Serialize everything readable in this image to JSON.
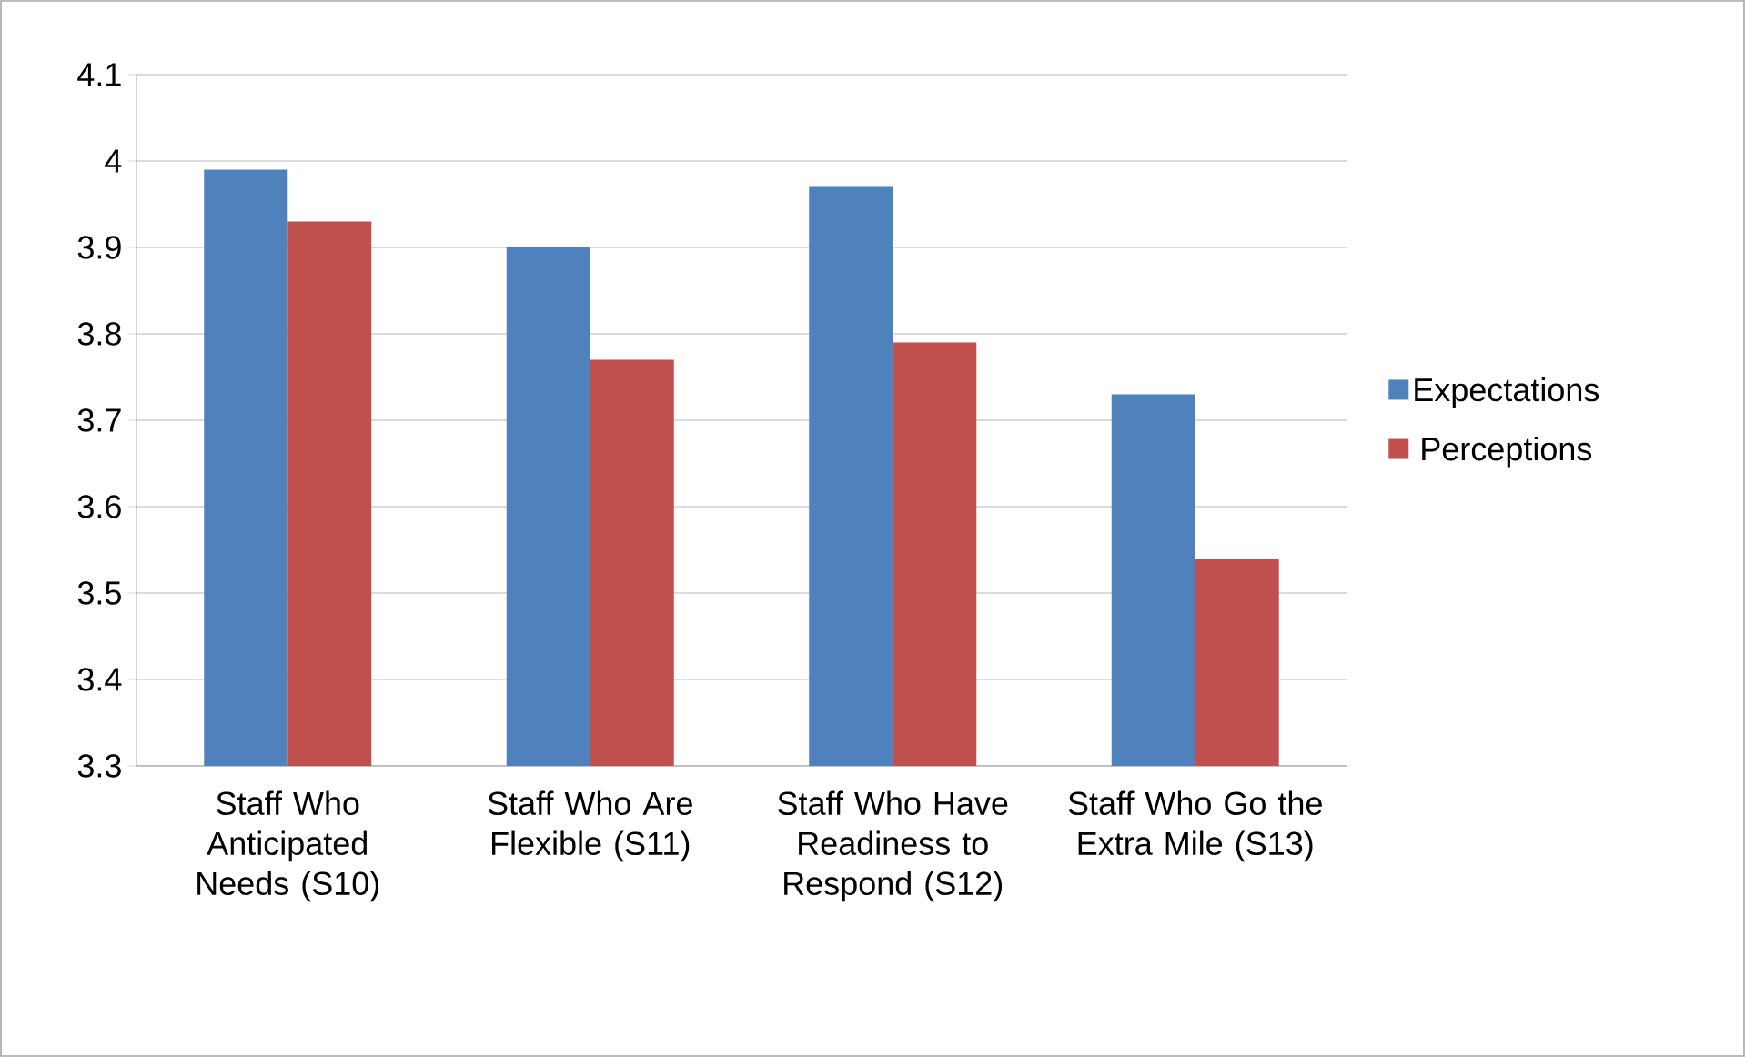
{
  "chart_data": {
    "type": "bar",
    "categories": [
      "Staff Who Anticipated Needs (S10)",
      "Staff Who Are Flexible (S11)",
      "Staff Who Have Readiness to Respond (S12)",
      "Staff Who Go the Extra Mile (S13)"
    ],
    "series": [
      {
        "name": "Expectations",
        "color": "#4f81bd",
        "values": [
          3.99,
          3.9,
          3.97,
          3.73
        ]
      },
      {
        "name": "Perceptions",
        "color": "#c0504d",
        "values": [
          3.93,
          3.77,
          3.79,
          3.54
        ]
      }
    ],
    "ylim": [
      3.3,
      4.1
    ],
    "yticks": [
      3.3,
      3.4,
      3.5,
      3.6,
      3.7,
      3.8,
      3.9,
      4,
      4.1
    ],
    "grid": "y",
    "legend": "right"
  }
}
